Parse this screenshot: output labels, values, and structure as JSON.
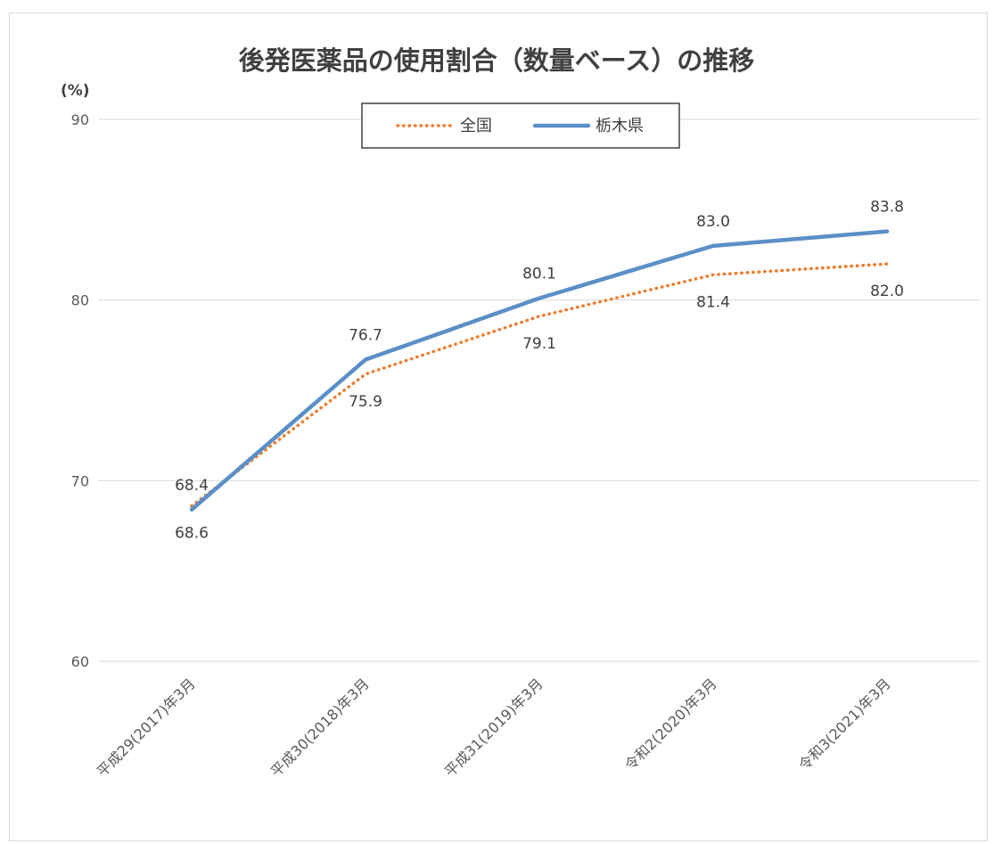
{
  "chart_data": {
    "type": "line",
    "title": "後発医薬品の使用割合（数量ベース）の推移",
    "ylabel": "(%)",
    "categories": [
      "平成29(2017)年3月",
      "平成30(2018)年3月",
      "平成31(2019)年3月",
      "令和2(2020)年3月",
      "令和3(2021)年3月"
    ],
    "ylim": [
      60,
      90
    ],
    "yticks": [
      60,
      70,
      80,
      90
    ],
    "grid": true,
    "legend_position": "top-center",
    "series": [
      {
        "name": "全国",
        "values": [
          68.6,
          75.9,
          79.1,
          81.4,
          82.0
        ],
        "color": "#ED7D31",
        "style": "dotted",
        "labels": [
          "68.6",
          "75.9",
          "79.1",
          "81.4",
          "82.0"
        ]
      },
      {
        "name": "栃木県",
        "values": [
          68.4,
          76.7,
          80.1,
          83.0,
          83.8
        ],
        "color": "#5B8FC7",
        "style": "solid",
        "labels": [
          "68.4",
          "76.7",
          "80.1",
          "83.0",
          "83.8"
        ]
      }
    ]
  }
}
